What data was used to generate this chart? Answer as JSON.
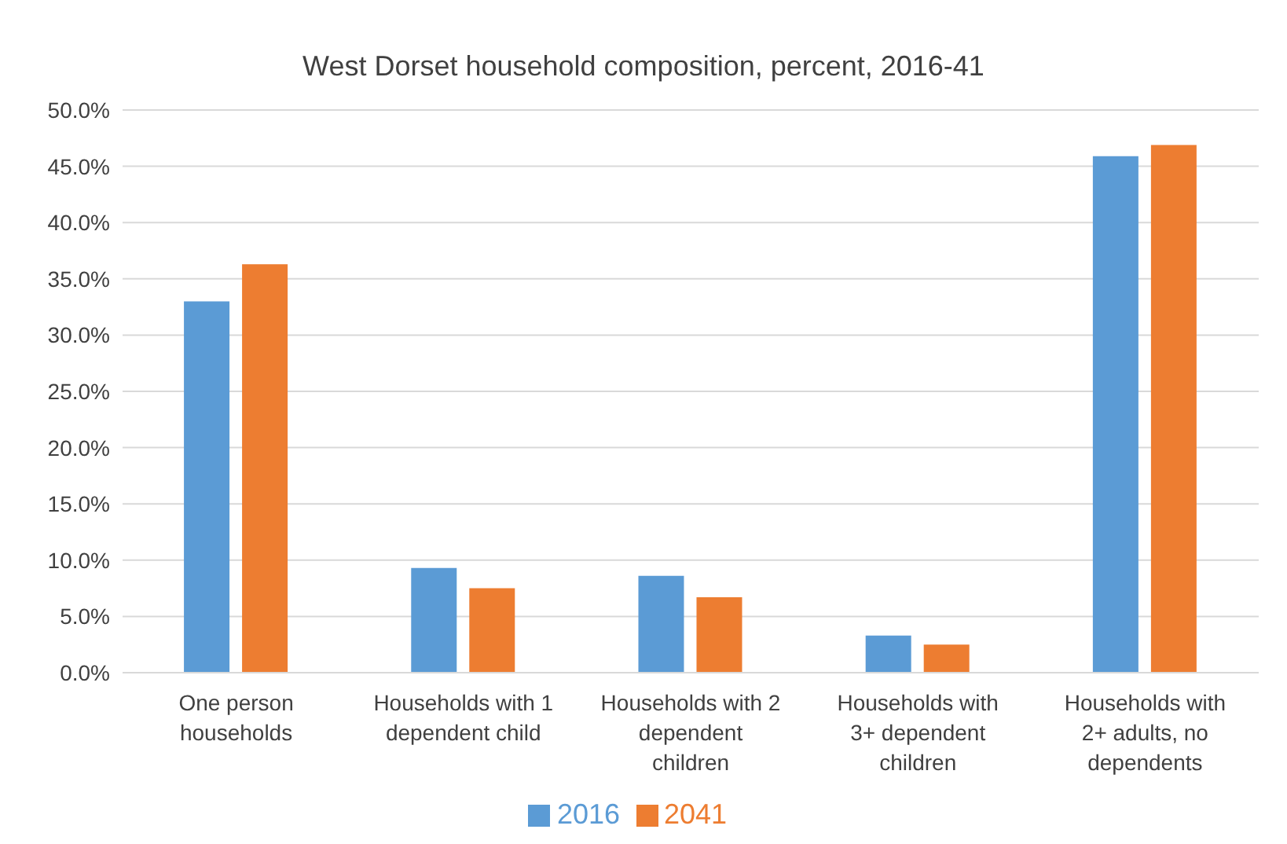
{
  "chart_data": {
    "type": "bar",
    "title": "West Dorset household composition, percent, 2016-41",
    "categories": [
      "One person households",
      "Households with 1 dependent child",
      "Households with 2 dependent children",
      "Households with 3+ dependent children",
      "Households with 2+ adults, no dependents"
    ],
    "series": [
      {
        "name": "2016",
        "color": "#5b9bd5",
        "values": [
          33.0,
          9.3,
          8.6,
          3.3,
          45.9
        ]
      },
      {
        "name": "2041",
        "color": "#ed7d31",
        "values": [
          36.3,
          7.5,
          6.7,
          2.5,
          46.9
        ]
      }
    ],
    "ylim": [
      0,
      50
    ],
    "yticks": [
      {
        "value": 0,
        "label": "0.0%"
      },
      {
        "value": 5,
        "label": "5.0%"
      },
      {
        "value": 10,
        "label": "10.0%"
      },
      {
        "value": 15,
        "label": "15.0%"
      },
      {
        "value": 20,
        "label": "20.0%"
      },
      {
        "value": 25,
        "label": "25.0%"
      },
      {
        "value": 30,
        "label": "30.0%"
      },
      {
        "value": 35,
        "label": "35.0%"
      },
      {
        "value": 40,
        "label": "40.0%"
      },
      {
        "value": 45,
        "label": "45.0%"
      },
      {
        "value": 50,
        "label": "50.0%"
      }
    ],
    "grid": "y",
    "legend": "bottom"
  }
}
